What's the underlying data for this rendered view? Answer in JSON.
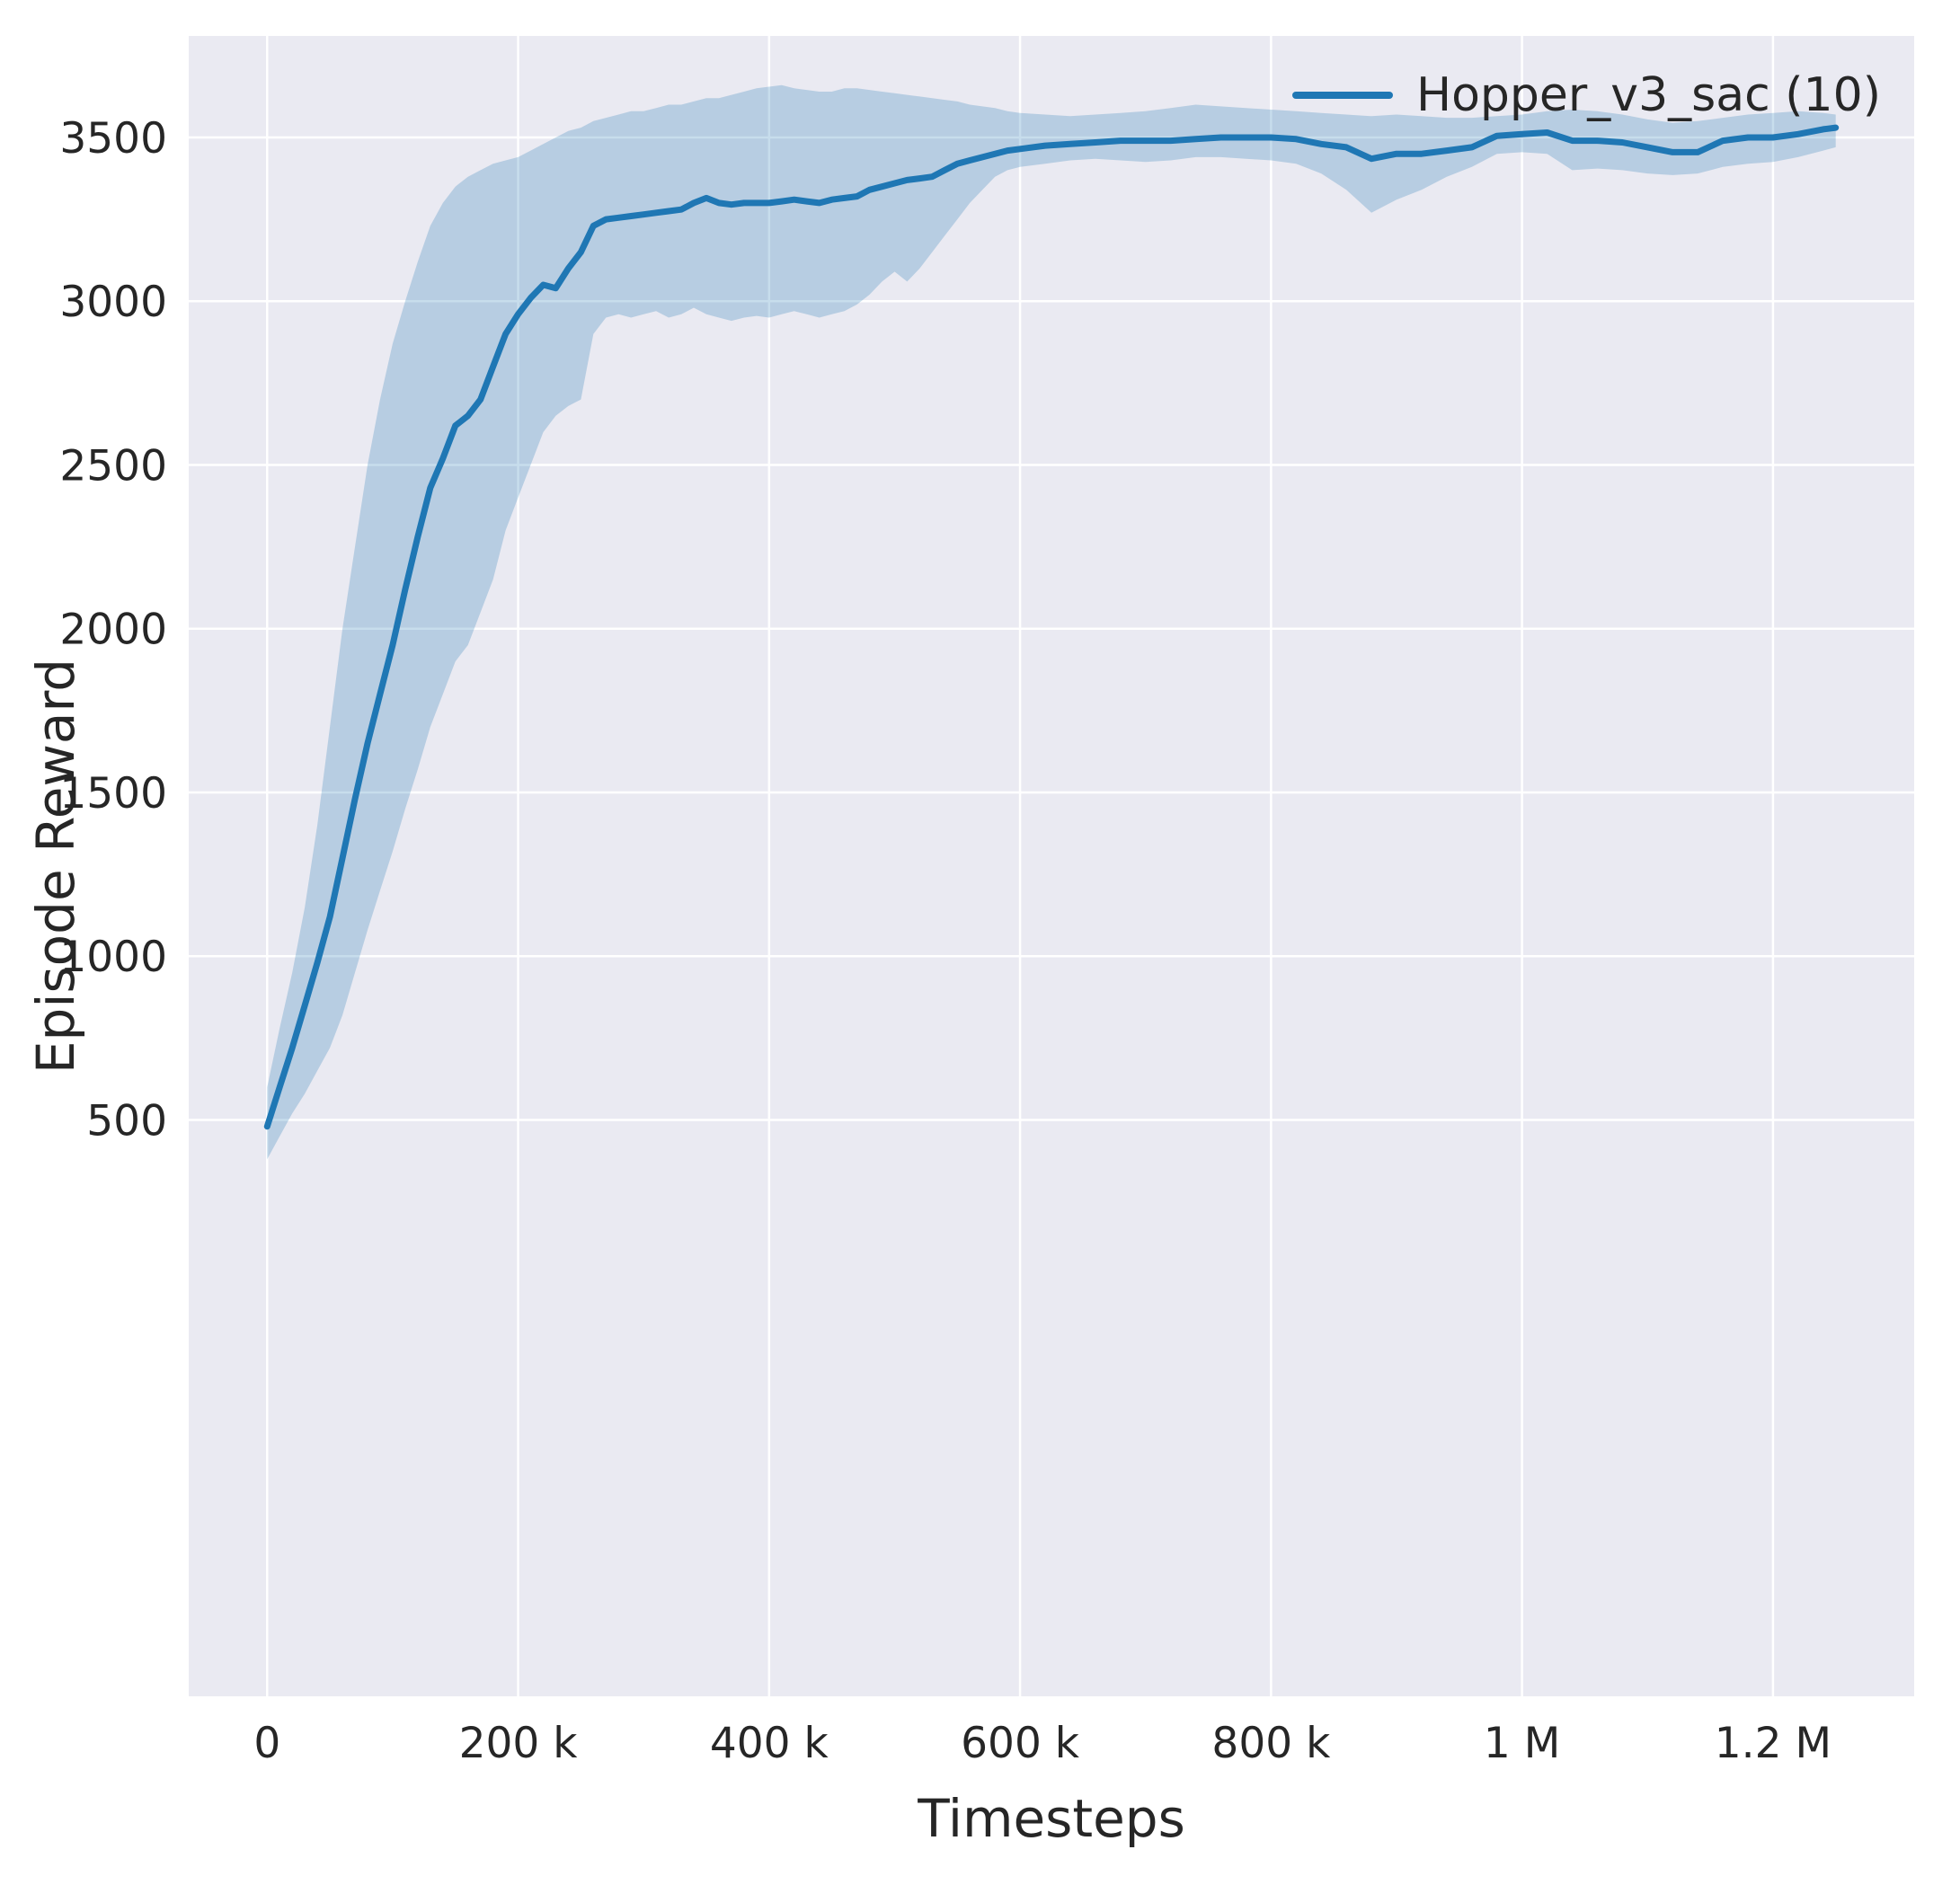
{
  "chart_data": {
    "type": "line",
    "title": "",
    "xlabel": "Timesteps",
    "ylabel": "Episode Reward",
    "plot_background": "#eaeaf2",
    "grid_color": "#ffffff",
    "text_color": "#262626",
    "tick_font_size": 47,
    "grid_width": 2.5,
    "legend": {
      "position": "upper right",
      "entries": [
        {
          "label": "Hopper_v3_sac (10)",
          "color": "#1f77b4"
        }
      ]
    },
    "x_axis": {
      "label": "Timesteps",
      "lim": [
        -62500,
        1312500
      ],
      "ticks": [
        {
          "value": 0,
          "label": "0"
        },
        {
          "value": 200000,
          "label": "200 k"
        },
        {
          "value": 400000,
          "label": "400 k"
        },
        {
          "value": 600000,
          "label": "600 k"
        },
        {
          "value": 800000,
          "label": "800 k"
        },
        {
          "value": 1000000,
          "label": "1 M"
        },
        {
          "value": 1200000,
          "label": "1.2 M"
        }
      ]
    },
    "y_axis": {
      "label": "Episode Reward",
      "lim": [
        -1260,
        3810
      ],
      "ticks": [
        {
          "value": 500,
          "label": "500"
        },
        {
          "value": 1000,
          "label": "1000"
        },
        {
          "value": 1500,
          "label": "1500"
        },
        {
          "value": 2000,
          "label": "2000"
        },
        {
          "value": 2500,
          "label": "2500"
        },
        {
          "value": 3000,
          "label": "3000"
        },
        {
          "value": 3500,
          "label": "3500"
        }
      ]
    },
    "series": [
      {
        "name": "Hopper_v3_sac (10)",
        "color": "#1f77b4",
        "line_width": 7,
        "band_opacity": 0.25,
        "points_format": [
          "timesteps",
          "mean_reward",
          "band_low",
          "band_high"
        ],
        "points": [
          [
            0,
            480,
            380,
            600
          ],
          [
            10000,
            600,
            450,
            780
          ],
          [
            20000,
            720,
            520,
            950
          ],
          [
            30000,
            850,
            580,
            1150
          ],
          [
            40000,
            980,
            650,
            1400
          ],
          [
            50000,
            1120,
            720,
            1700
          ],
          [
            60000,
            1300,
            820,
            2000
          ],
          [
            70000,
            1480,
            950,
            2250
          ],
          [
            80000,
            1650,
            1080,
            2500
          ],
          [
            90000,
            1800,
            1200,
            2700
          ],
          [
            100000,
            1950,
            1320,
            2870
          ],
          [
            110000,
            2120,
            1450,
            3000
          ],
          [
            120000,
            2280,
            1570,
            3120
          ],
          [
            130000,
            2430,
            1700,
            3230
          ],
          [
            140000,
            2520,
            1800,
            3300
          ],
          [
            150000,
            2620,
            1900,
            3350
          ],
          [
            160000,
            2650,
            1950,
            3380
          ],
          [
            170000,
            2700,
            2050,
            3400
          ],
          [
            180000,
            2800,
            2150,
            3420
          ],
          [
            190000,
            2900,
            2300,
            3430
          ],
          [
            200000,
            2960,
            2400,
            3440
          ],
          [
            210000,
            3010,
            2500,
            3460
          ],
          [
            220000,
            3050,
            2600,
            3480
          ],
          [
            230000,
            3040,
            2650,
            3500
          ],
          [
            240000,
            3100,
            2680,
            3520
          ],
          [
            250000,
            3150,
            2700,
            3530
          ],
          [
            260000,
            3230,
            2900,
            3550
          ],
          [
            270000,
            3250,
            2950,
            3560
          ],
          [
            280000,
            3255,
            2960,
            3570
          ],
          [
            290000,
            3260,
            2950,
            3580
          ],
          [
            300000,
            3265,
            2960,
            3580
          ],
          [
            310000,
            3270,
            2970,
            3590
          ],
          [
            320000,
            3275,
            2950,
            3600
          ],
          [
            330000,
            3280,
            2960,
            3600
          ],
          [
            340000,
            3300,
            2980,
            3610
          ],
          [
            350000,
            3315,
            2960,
            3620
          ],
          [
            360000,
            3300,
            2950,
            3620
          ],
          [
            370000,
            3295,
            2940,
            3630
          ],
          [
            380000,
            3300,
            2950,
            3640
          ],
          [
            390000,
            3300,
            2955,
            3650
          ],
          [
            400000,
            3300,
            2950,
            3655
          ],
          [
            410000,
            3305,
            2960,
            3660
          ],
          [
            420000,
            3310,
            2970,
            3650
          ],
          [
            430000,
            3305,
            2960,
            3645
          ],
          [
            440000,
            3300,
            2950,
            3640
          ],
          [
            450000,
            3310,
            2960,
            3640
          ],
          [
            460000,
            3315,
            2970,
            3650
          ],
          [
            470000,
            3320,
            2990,
            3650
          ],
          [
            480000,
            3340,
            3020,
            3645
          ],
          [
            490000,
            3350,
            3060,
            3640
          ],
          [
            500000,
            3360,
            3090,
            3635
          ],
          [
            510000,
            3370,
            3060,
            3630
          ],
          [
            520000,
            3375,
            3100,
            3625
          ],
          [
            530000,
            3380,
            3150,
            3620
          ],
          [
            540000,
            3400,
            3200,
            3615
          ],
          [
            550000,
            3420,
            3250,
            3610
          ],
          [
            560000,
            3430,
            3300,
            3600
          ],
          [
            570000,
            3440,
            3340,
            3595
          ],
          [
            580000,
            3450,
            3380,
            3590
          ],
          [
            590000,
            3460,
            3400,
            3580
          ],
          [
            600000,
            3465,
            3410,
            3575
          ],
          [
            620000,
            3475,
            3420,
            3570
          ],
          [
            640000,
            3480,
            3430,
            3565
          ],
          [
            660000,
            3485,
            3435,
            3570
          ],
          [
            680000,
            3490,
            3430,
            3575
          ],
          [
            700000,
            3490,
            3425,
            3580
          ],
          [
            720000,
            3490,
            3430,
            3590
          ],
          [
            740000,
            3495,
            3440,
            3600
          ],
          [
            760000,
            3500,
            3440,
            3595
          ],
          [
            780000,
            3500,
            3435,
            3590
          ],
          [
            800000,
            3500,
            3430,
            3585
          ],
          [
            820000,
            3495,
            3420,
            3580
          ],
          [
            840000,
            3480,
            3390,
            3575
          ],
          [
            860000,
            3470,
            3340,
            3570
          ],
          [
            880000,
            3435,
            3270,
            3565
          ],
          [
            900000,
            3450,
            3310,
            3570
          ],
          [
            920000,
            3450,
            3340,
            3565
          ],
          [
            940000,
            3460,
            3380,
            3560
          ],
          [
            960000,
            3470,
            3410,
            3560
          ],
          [
            980000,
            3505,
            3450,
            3565
          ],
          [
            1000000,
            3510,
            3455,
            3570
          ],
          [
            1020000,
            3515,
            3450,
            3580
          ],
          [
            1040000,
            3490,
            3400,
            3585
          ],
          [
            1060000,
            3490,
            3405,
            3580
          ],
          [
            1080000,
            3485,
            3400,
            3570
          ],
          [
            1100000,
            3470,
            3390,
            3555
          ],
          [
            1120000,
            3455,
            3385,
            3545
          ],
          [
            1140000,
            3455,
            3390,
            3550
          ],
          [
            1160000,
            3490,
            3410,
            3560
          ],
          [
            1180000,
            3500,
            3420,
            3570
          ],
          [
            1200000,
            3500,
            3425,
            3575
          ],
          [
            1220000,
            3510,
            3440,
            3580
          ],
          [
            1240000,
            3525,
            3460,
            3575
          ],
          [
            1250000,
            3530,
            3470,
            3570
          ]
        ]
      }
    ]
  }
}
